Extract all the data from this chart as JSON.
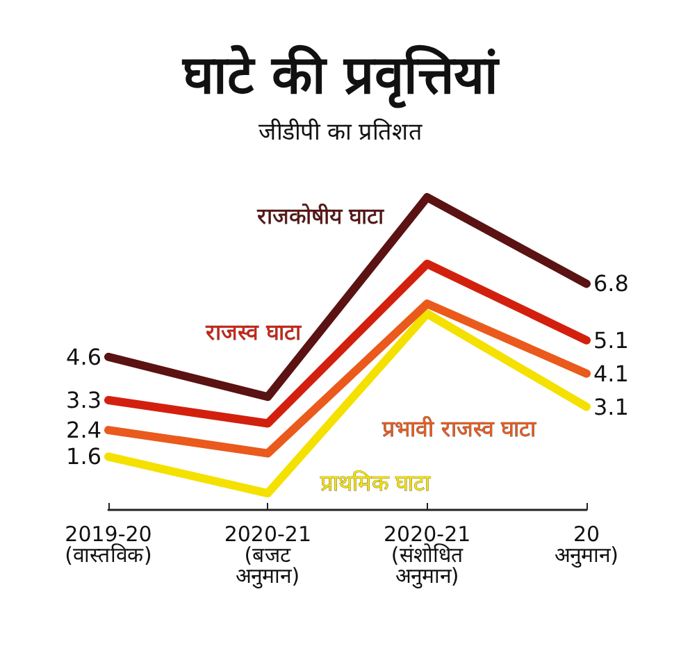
{
  "chart_data": {
    "type": "line",
    "title": "घाटे की प्रवृत्तियां",
    "subtitle": "जीडीपी का प्रतिशत",
    "categories": [
      "2019-20\n(वास्तविक)",
      "2020-21\n(बजट\nअनुमान)",
      "2020-21\n(संशोधित\nअनुमान)",
      "20\nअनुमान)"
    ],
    "series": [
      {
        "name": "राजकोषीय घाटा",
        "color": "#5a1212",
        "values": [
          4.6,
          3.4,
          9.4,
          6.8
        ],
        "value_labels": [
          "4.6",
          null,
          null,
          "6.8"
        ]
      },
      {
        "name": "राजस्व घाटा",
        "color": "#d3200e",
        "values": [
          3.3,
          2.6,
          7.4,
          5.1
        ],
        "value_labels": [
          "3.3",
          null,
          null,
          "5.1"
        ]
      },
      {
        "name": "प्रभावी राजस्व घाटा",
        "color": "#ea5a1c",
        "values": [
          2.4,
          1.7,
          6.2,
          4.1
        ],
        "value_labels": [
          "2.4",
          null,
          null,
          "4.1"
        ]
      },
      {
        "name": "प्राथमिक घाटा",
        "color": "#f4e100",
        "values": [
          1.6,
          0.5,
          5.9,
          3.1
        ],
        "value_labels": [
          "1.6",
          null,
          null,
          "3.1"
        ]
      }
    ],
    "tick_labels": "x",
    "grid": false,
    "legend": false,
    "marker": "none",
    "line_style": "solid"
  }
}
